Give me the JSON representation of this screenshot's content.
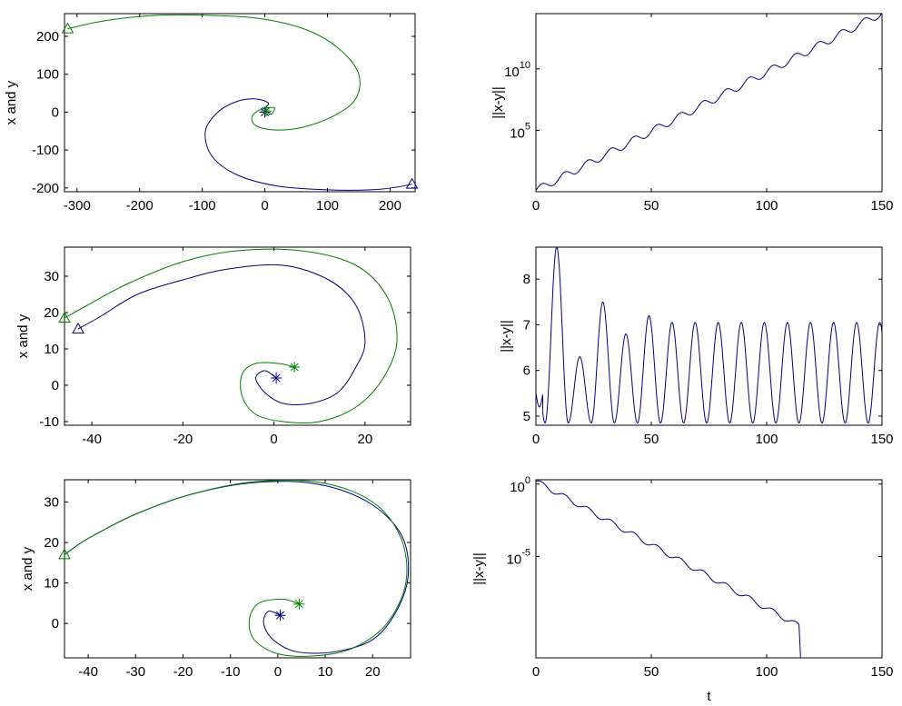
{
  "colors": {
    "series_blue": "#000080",
    "series_green": "#007f00",
    "axis": "#000000",
    "background": "#ffffff"
  },
  "marker_names": {
    "start": "asterisk",
    "end": "triangle"
  },
  "chart_data": [
    {
      "id": "p1",
      "type": "line",
      "scale_y": "linear",
      "title": "",
      "xlabel": "",
      "ylabel": "x and y",
      "xlim": [
        -320,
        240
      ],
      "ylim": [
        -210,
        260
      ],
      "xticks": [
        -300,
        -200,
        -100,
        0,
        100,
        200
      ],
      "xtick_labels": [
        "-300",
        "-200",
        "-100",
        "0",
        "100",
        "200"
      ],
      "yticks": [
        -200,
        -100,
        0,
        100,
        200
      ],
      "ytick_labels": [
        "-200",
        "-100",
        "0",
        "100",
        "200"
      ],
      "series": [
        {
          "color": "#000080",
          "start_marker": [
            0,
            0
          ],
          "end_marker": [
            235,
            -190
          ],
          "points": [
            [
              0,
              0
            ],
            [
              2,
              12
            ],
            [
              5,
              25
            ],
            [
              -15,
              35
            ],
            [
              -45,
              28
            ],
            [
              -75,
              0
            ],
            [
              -95,
              -50
            ],
            [
              -85,
              -115
            ],
            [
              -45,
              -165
            ],
            [
              20,
              -195
            ],
            [
              100,
              -205
            ],
            [
              170,
              -205
            ],
            [
              210,
              -198
            ],
            [
              235,
              -190
            ]
          ]
        },
        {
          "color": "#007f00",
          "start_marker": [
            2,
            3
          ],
          "end_marker": [
            -315,
            220
          ],
          "points": [
            [
              2,
              3
            ],
            [
              10,
              -5
            ],
            [
              15,
              12
            ],
            [
              -5,
              8
            ],
            [
              -20,
              -10
            ],
            [
              -15,
              -35
            ],
            [
              15,
              -47
            ],
            [
              60,
              -40
            ],
            [
              110,
              -10
            ],
            [
              145,
              35
            ],
            [
              150,
              100
            ],
            [
              120,
              165
            ],
            [
              70,
              215
            ],
            [
              0,
              245
            ],
            [
              -80,
              255
            ],
            [
              -180,
              255
            ],
            [
              -260,
              240
            ],
            [
              -315,
              220
            ]
          ]
        }
      ]
    },
    {
      "id": "p2",
      "type": "line",
      "scale_y": "log",
      "title": "",
      "xlabel": "",
      "ylabel": "||x-y||",
      "xlim": [
        0,
        150
      ],
      "ylim_log10": [
        0,
        14.5
      ],
      "xticks": [
        0,
        50,
        100,
        150
      ],
      "xtick_labels": [
        "0",
        "50",
        "100",
        "150"
      ],
      "yticks_log10": [
        5,
        10
      ],
      "ytick_bases": [
        "10",
        "10"
      ],
      "ytick_exps": [
        "5",
        "10"
      ],
      "series": [
        {
          "color": "#000080",
          "slope_log10_per_t": 0.0963,
          "intercept_log10": 0.1,
          "oscillation_amp": 0.3,
          "oscillation_period": 10,
          "t_end": 150
        }
      ]
    },
    {
      "id": "p3",
      "type": "line",
      "scale_y": "linear",
      "title": "",
      "xlabel": "",
      "ylabel": "x and y",
      "xlim": [
        -46,
        30
      ],
      "ylim": [
        -11,
        38
      ],
      "xticks": [
        -40,
        -20,
        0,
        20
      ],
      "xtick_labels": [
        "-40",
        "-20",
        "0",
        "20"
      ],
      "yticks": [
        -10,
        0,
        10,
        20,
        30
      ],
      "ytick_labels": [
        "-10",
        "0",
        "10",
        "20",
        "30"
      ],
      "series": [
        {
          "color": "#000080",
          "start_marker": [
            0.5,
            2
          ],
          "end_marker": [
            -43,
            15.5
          ],
          "points": [
            [
              0.5,
              2
            ],
            [
              -2,
              4
            ],
            [
              -4,
              2
            ],
            [
              -2,
              -2
            ],
            [
              2,
              -5
            ],
            [
              8,
              -5
            ],
            [
              14,
              -2
            ],
            [
              18,
              5
            ],
            [
              20,
              12
            ],
            [
              18,
              22
            ],
            [
              12,
              29
            ],
            [
              2,
              33
            ],
            [
              -10,
              32
            ],
            [
              -20,
              29
            ],
            [
              -30,
              25
            ],
            [
              -38,
              19
            ],
            [
              -43,
              15.5
            ]
          ]
        },
        {
          "color": "#007f00",
          "start_marker": [
            4.5,
            5
          ],
          "end_marker": [
            -46,
            18.5
          ],
          "points": [
            [
              4.5,
              5
            ],
            [
              1,
              6
            ],
            [
              -4,
              6
            ],
            [
              -7,
              3
            ],
            [
              -7,
              -3
            ],
            [
              -4,
              -8
            ],
            [
              2,
              -10
            ],
            [
              10,
              -10
            ],
            [
              18,
              -6
            ],
            [
              24,
              2
            ],
            [
              27,
              12
            ],
            [
              25,
              24
            ],
            [
              18,
              33
            ],
            [
              6,
              37
            ],
            [
              -8,
              37
            ],
            [
              -20,
              34
            ],
            [
              -32,
              28
            ],
            [
              -41,
              22
            ],
            [
              -46,
              18.5
            ]
          ]
        }
      ]
    },
    {
      "id": "p4",
      "type": "line",
      "scale_y": "linear",
      "title": "",
      "xlabel": "",
      "ylabel": "||x-y||",
      "xlim": [
        0,
        150
      ],
      "ylim": [
        4.8,
        8.7
      ],
      "xticks": [
        0,
        50,
        100,
        150
      ],
      "xtick_labels": [
        "0",
        "50",
        "100",
        "150"
      ],
      "yticks": [
        5,
        6,
        7,
        8
      ],
      "ytick_labels": [
        "5",
        "6",
        "7",
        "8"
      ],
      "series": [
        {
          "color": "#000080",
          "period_t": 10,
          "min": 4.85,
          "steady_max": 7.05,
          "first_peaks": [
            [
              9,
              8.7
            ],
            [
              19,
              6.3
            ],
            [
              29,
              7.5
            ],
            [
              39,
              6.8
            ],
            [
              49,
              7.2
            ]
          ],
          "t_end": 150
        }
      ]
    },
    {
      "id": "p5",
      "type": "line",
      "scale_y": "linear",
      "title": "",
      "xlabel": "",
      "ylabel": "x and y",
      "xlim": [
        -45,
        28
      ],
      "ylim": [
        -8.5,
        35.5
      ],
      "xticks": [
        -40,
        -30,
        -20,
        -10,
        0,
        10,
        20
      ],
      "xtick_labels": [
        "-40",
        "-30",
        "-20",
        "-10",
        "0",
        "10",
        "20"
      ],
      "yticks": [
        0,
        10,
        20,
        30
      ],
      "ytick_labels": [
        "0",
        "10",
        "20",
        "30"
      ],
      "series": [
        {
          "color": "#000080",
          "start_marker": [
            0.5,
            2
          ],
          "end_marker": null,
          "points": [
            [
              0.5,
              2
            ],
            [
              -2,
              3
            ],
            [
              -3,
              0
            ],
            [
              -1,
              -4
            ],
            [
              4,
              -7
            ],
            [
              12,
              -7
            ],
            [
              20,
              -4
            ],
            [
              25,
              3
            ],
            [
              27.5,
              12
            ],
            [
              26,
              22
            ],
            [
              19,
              30
            ],
            [
              8,
              34.5
            ],
            [
              -5,
              34.8
            ],
            [
              -18,
              32
            ],
            [
              -30,
              27
            ],
            [
              -40,
              21
            ],
            [
              -45,
              17
            ]
          ]
        },
        {
          "color": "#007f00",
          "start_marker": [
            4.5,
            4.8
          ],
          "end_marker": [
            -45,
            17
          ],
          "points": [
            [
              4.5,
              4.8
            ],
            [
              1,
              6
            ],
            [
              -4,
              5
            ],
            [
              -6,
              1
            ],
            [
              -5,
              -4
            ],
            [
              0,
              -7.5
            ],
            [
              8,
              -8
            ],
            [
              16,
              -6
            ],
            [
              23,
              0
            ],
            [
              27,
              10
            ],
            [
              26,
              21
            ],
            [
              20,
              30
            ],
            [
              9,
              34.8
            ],
            [
              -5,
              35
            ],
            [
              -18,
              32
            ],
            [
              -30,
              27
            ],
            [
              -40,
              21
            ],
            [
              -45,
              17
            ]
          ]
        }
      ]
    },
    {
      "id": "p6",
      "type": "line",
      "scale_y": "log",
      "title": "",
      "xlabel": "t",
      "ylabel": "||x-y||",
      "xlim": [
        0,
        150
      ],
      "ylim_log10": [
        -12,
        0.3
      ],
      "xticks": [
        0,
        50,
        100,
        150
      ],
      "xtick_labels": [
        "0",
        "50",
        "100",
        "150"
      ],
      "yticks_log10": [
        -5,
        0
      ],
      "ytick_bases": [
        "10",
        "10"
      ],
      "ytick_exps": [
        "-5",
        "0"
      ],
      "series": [
        {
          "color": "#000080",
          "slope_log10_per_t": -0.0877,
          "intercept_log10": 0.2,
          "oscillation_amp": 0.18,
          "oscillation_period": 10,
          "t_end": 114,
          "cutoff_t": 115
        }
      ]
    }
  ]
}
